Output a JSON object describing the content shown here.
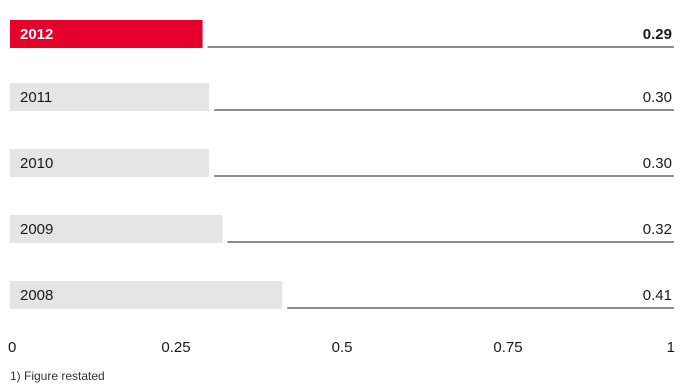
{
  "colors": {
    "highlight_bar": "#e4002b",
    "bar": "#e5e5e5",
    "rule": "#1a1a1a",
    "text": "#1a1a1a",
    "highlight_label": "#ffffff"
  },
  "chart_data": {
    "type": "bar",
    "orientation": "horizontal",
    "categories": [
      "2012",
      "2011",
      "2010",
      "2009",
      "2008"
    ],
    "values": [
      0.29,
      0.3,
      0.3,
      0.32,
      0.41
    ],
    "value_labels": [
      "0.29",
      "0.30",
      "0.30",
      "0.32",
      "0.41"
    ],
    "highlight_category": "2012",
    "xlim": [
      0,
      1
    ],
    "x_ticks": [
      "0",
      "0.25",
      "0.5",
      "0.75",
      "1"
    ],
    "x_tick_values": [
      0,
      0.25,
      0.5,
      0.75,
      1
    ],
    "grid": false
  },
  "footnote": "1) Figure restated"
}
